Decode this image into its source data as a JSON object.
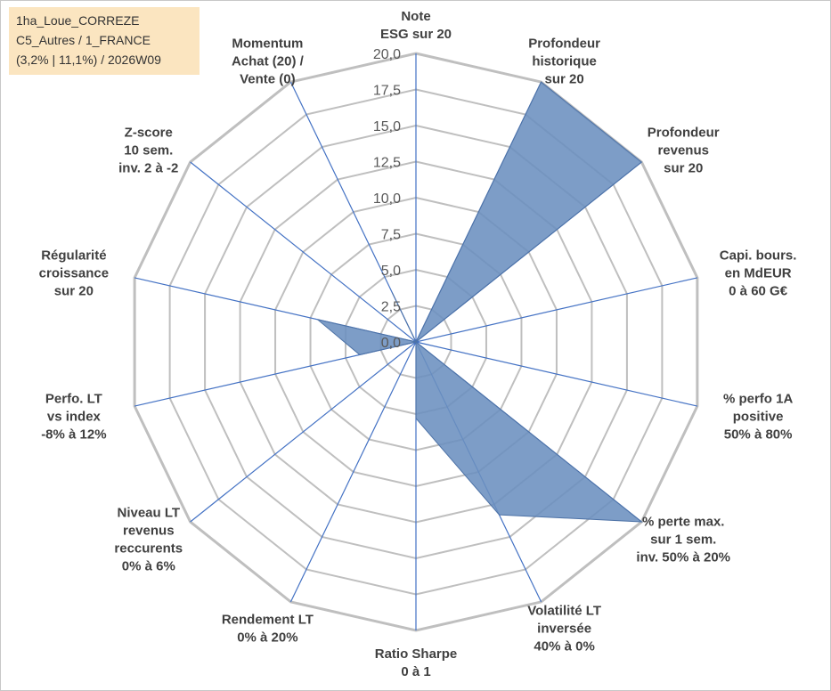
{
  "chart_data": {
    "type": "radar",
    "title_lines": [
      "1ha_Loue_CORREZE",
      "C5_Autres / 1_FRANCE",
      "(3,2% | 11,1%) / 2026W09"
    ],
    "rlim": [
      0,
      20
    ],
    "tick_values": [
      0,
      2.5,
      5,
      7.5,
      10,
      12.5,
      15,
      17.5,
      20
    ],
    "tick_labels": [
      "0,0",
      "2,5",
      "5,0",
      "7,5",
      "10,0",
      "12,5",
      "15,0",
      "17,5",
      "20,0"
    ],
    "axes": [
      {
        "label_lines": [
          "Note",
          "ESG sur 20"
        ],
        "value": 0
      },
      {
        "label_lines": [
          "Profondeur",
          "historique",
          "sur 20"
        ],
        "value": 20
      },
      {
        "label_lines": [
          "Profondeur",
          "revenus",
          "sur 20"
        ],
        "value": 20
      },
      {
        "label_lines": [
          "Capi. bours.",
          "en MdEUR",
          "0 à 60 G€"
        ],
        "value": 0
      },
      {
        "label_lines": [
          "% perfo 1A",
          "positive",
          "50% à 80%"
        ],
        "value": 0
      },
      {
        "label_lines": [
          "% perte max.",
          "sur 1 sem.",
          "inv. 50% à 20%"
        ],
        "value": 20
      },
      {
        "label_lines": [
          "Volatilité LT",
          "inversée",
          "40% à 0%"
        ],
        "value": 13.3
      },
      {
        "label_lines": [
          "Ratio Sharpe",
          "0 à 1"
        ],
        "value": 5.3
      },
      {
        "label_lines": [
          "Rendement LT",
          "0% à 20%"
        ],
        "value": 0
      },
      {
        "label_lines": [
          "Niveau LT",
          "revenus",
          "reccurents",
          "0% à 6%"
        ],
        "value": 0
      },
      {
        "label_lines": [
          "Perfo. LT",
          "vs index",
          "-8% à 12%"
        ],
        "value": 4.0
      },
      {
        "label_lines": [
          "Régularité",
          "croissance",
          "sur 20"
        ],
        "value": 7.0
      },
      {
        "label_lines": [
          "Z-score",
          "10 sem.",
          "inv. 2 à -2"
        ],
        "value": 0
      },
      {
        "label_lines": [
          "Momentum",
          "Achat (20) /",
          "Vente (0)"
        ],
        "value": 3.8
      }
    ],
    "series_color": "#6b8fbf",
    "series_stroke": "#4d72a6",
    "grid_color": "#bfbfbf",
    "axis_color": "#4472c4"
  }
}
